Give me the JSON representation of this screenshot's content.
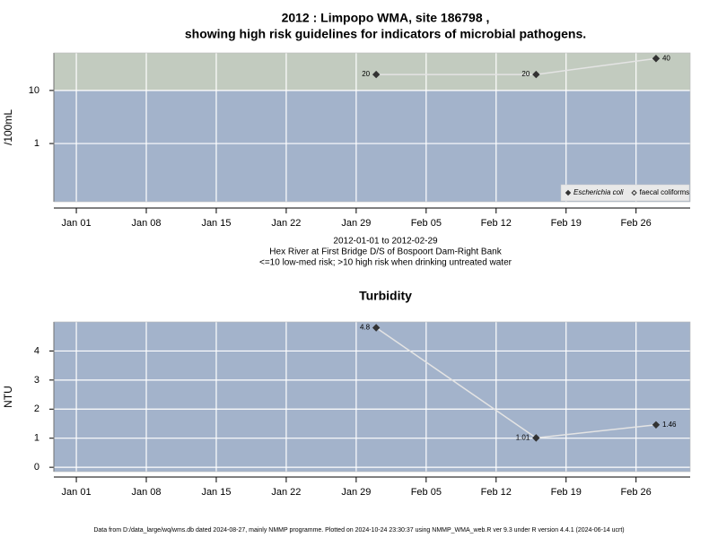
{
  "chart_data": [
    {
      "type": "line",
      "title": [
        "2012 : Limpopo WMA, site 186798 ,",
        "showing high risk guidelines for indicators of microbial pathogens."
      ],
      "notes": [
        "2012-01-01 to 2012-02-29",
        "Hex River at First Bridge D/S of Bospoort Dam-Right Bank",
        "<=10 low-med risk; >10 high risk when drinking untreated water"
      ],
      "ylabel": "/100mL",
      "x": [
        "2012-01-31",
        "2012-02-16",
        "2012-02-28"
      ],
      "xlim": [
        "2011-12-29T18:00",
        "2012-03-02T10:00"
      ],
      "xticks": [
        {
          "value": "2012-01-01",
          "label": "Jan 01"
        },
        {
          "value": "2012-01-08",
          "label": "Jan 08"
        },
        {
          "value": "2012-01-15",
          "label": "Jan 15"
        },
        {
          "value": "2012-01-22",
          "label": "Jan 22"
        },
        {
          "value": "2012-01-29",
          "label": "Jan 29"
        },
        {
          "value": "2012-02-05",
          "label": "Feb 05"
        },
        {
          "value": "2012-02-12",
          "label": "Feb 12"
        },
        {
          "value": "2012-02-19",
          "label": "Feb 19"
        },
        {
          "value": "2012-02-26",
          "label": "Feb 26"
        }
      ],
      "log_y": true,
      "ylim": [
        0.08,
        51
      ],
      "yticks": [
        1,
        10
      ],
      "guideline": 10,
      "band_colors": {
        "above": "#c2cbbf",
        "below": "#a3b3cb"
      },
      "line_color": "#e4e4e4",
      "grid": true,
      "legend": "bottom-right",
      "series": [
        {
          "name": "Escherichia coli",
          "color": "#333333",
          "marker": "filled",
          "values": [
            20,
            20,
            40
          ]
        },
        {
          "name": "faecal coliforms",
          "color": "#333333",
          "marker": "open",
          "values": [
            null,
            null,
            null
          ]
        }
      ]
    },
    {
      "type": "line",
      "title": [
        "Turbidity"
      ],
      "ylabel": "NTU",
      "x": [
        "2012-01-31",
        "2012-02-16",
        "2012-02-28"
      ],
      "xlim": [
        "2011-12-29T18:00",
        "2012-03-02T10:00"
      ],
      "xticks": [
        {
          "value": "2012-01-01",
          "label": "Jan 01"
        },
        {
          "value": "2012-01-08",
          "label": "Jan 08"
        },
        {
          "value": "2012-01-15",
          "label": "Jan 15"
        },
        {
          "value": "2012-01-22",
          "label": "Jan 22"
        },
        {
          "value": "2012-01-29",
          "label": "Jan 29"
        },
        {
          "value": "2012-02-05",
          "label": "Feb 05"
        },
        {
          "value": "2012-02-12",
          "label": "Feb 12"
        },
        {
          "value": "2012-02-19",
          "label": "Feb 19"
        },
        {
          "value": "2012-02-26",
          "label": "Feb 26"
        }
      ],
      "log_y": false,
      "ylim": [
        -0.15,
        5.0
      ],
      "yticks": [
        0,
        1,
        2,
        3,
        4
      ],
      "background": "#a3b3cb",
      "line_color": "#e4e4e4",
      "grid": true,
      "series": [
        {
          "color": "#333333",
          "marker": "filled",
          "values": [
            4.8,
            1.01,
            1.46
          ]
        }
      ]
    }
  ],
  "footer": "Data from D:/data_large/wq/wms.db dated 2024-08-27, mainly NMMP programme. Plotted on 2024-10-24 23:30:37 using NMMP_WMA_web.R ver 9.3 under R version 4.4.1 (2024-06-14 ucrt)"
}
